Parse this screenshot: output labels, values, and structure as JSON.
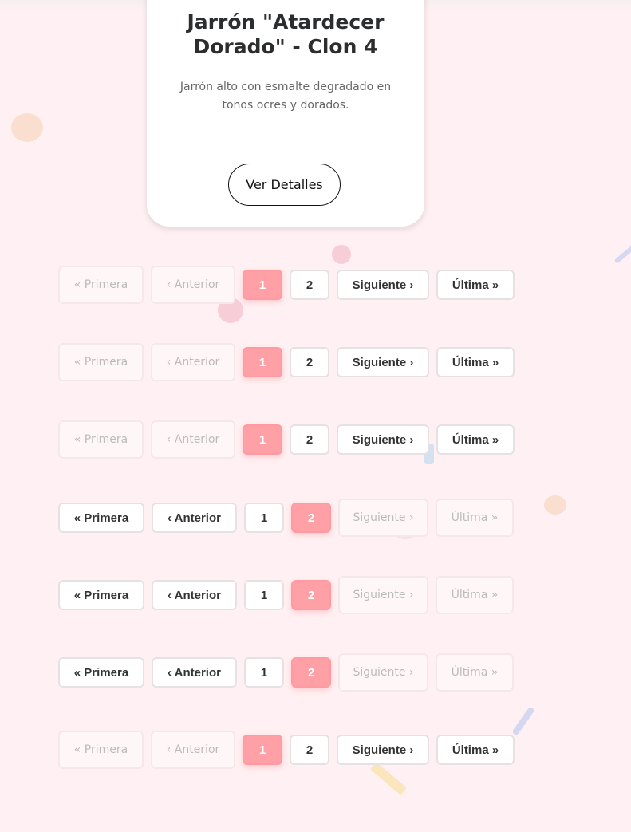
{
  "product": {
    "title": "Jarrón \"Atardecer Dorado\" - Clon 4",
    "description": "Jarrón alto con esmalte degradado en tonos ocres y dorados.",
    "details_label": "Ver Detalles"
  },
  "pagination_labels": {
    "first": "« Primera",
    "prev": "‹ Anterior",
    "next": "Siguiente ›",
    "last": "Última »",
    "page1": "1",
    "page2": "2"
  },
  "paginations": [
    {
      "current_page": 1
    },
    {
      "current_page": 1
    },
    {
      "current_page": 1
    },
    {
      "current_page": 2
    },
    {
      "current_page": 2
    },
    {
      "current_page": 2
    },
    {
      "current_page": 1
    }
  ],
  "colors": {
    "active": "#ffa0a6",
    "background": "#fff1f3"
  }
}
